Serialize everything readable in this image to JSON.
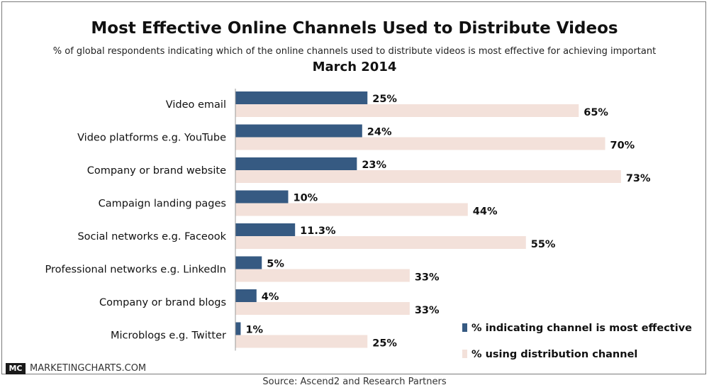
{
  "chart_data": {
    "type": "bar",
    "orientation": "horizontal",
    "title": "Most Effective Online Channels Used to Distribute Videos",
    "subtitle": "% of global respondents indicating which of the online channels used to distribute videos is most effective for achieving important",
    "date_label": "March 2014",
    "categories": [
      "Video email",
      "Video platforms e.g. YouTube",
      "Company or brand website",
      "Campaign landing pages",
      "Social networks e.g. Faceook",
      "Professional networks e.g. LinkedIn",
      "Company or brand blogs",
      "Microblogs e.g. Twitter"
    ],
    "series": [
      {
        "name": "% indicating channel is most effective",
        "color": "#365a82",
        "values": [
          25,
          24,
          23,
          10,
          11.3,
          5,
          4,
          1
        ],
        "labels": [
          "25%",
          "24%",
          "23%",
          "10%",
          "11.3%",
          "5%",
          "4%",
          "1%"
        ]
      },
      {
        "name": "% using distribution channel",
        "color": "#f3e1da",
        "values": [
          65,
          70,
          73,
          44,
          55,
          33,
          33,
          25
        ],
        "labels": [
          "65%",
          "70%",
          "73%",
          "44%",
          "55%",
          "33%",
          "33%",
          "25%"
        ]
      }
    ],
    "xlim": [
      0,
      100
    ],
    "grid": false,
    "legend_position": "bottom-right"
  },
  "branding": {
    "logo_mark": "MC",
    "logo_text": "MARKETINGCHARTS.COM"
  },
  "source": "Source: Ascend2 and Research Partners"
}
